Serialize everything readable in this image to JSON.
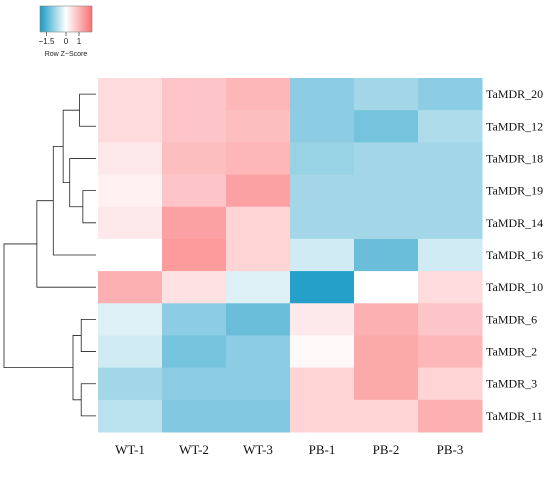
{
  "chart_data": {
    "type": "heatmap",
    "title": "",
    "columns": [
      "WT-1",
      "WT-2",
      "WT-3",
      "PB-1",
      "PB-2",
      "PB-3"
    ],
    "rows": [
      "TaMDR_20",
      "TaMDR_12",
      "TaMDR_18",
      "TaMDR_19",
      "TaMDR_14",
      "TaMDR_16",
      "TaMDR_10",
      "TaMDR_6",
      "TaMDR_2",
      "TaMDR_3",
      "TaMDR_11"
    ],
    "values": [
      [
        0.5,
        0.8,
        1.0,
        -1.0,
        -0.8,
        -1.0
      ],
      [
        0.5,
        0.8,
        0.9,
        -1.0,
        -1.2,
        -0.7
      ],
      [
        0.3,
        0.9,
        1.0,
        -0.9,
        -0.8,
        -0.8
      ],
      [
        0.2,
        0.8,
        1.3,
        -0.8,
        -0.8,
        -0.8
      ],
      [
        0.3,
        1.3,
        0.6,
        -0.8,
        -0.8,
        -0.8
      ],
      [
        0.0,
        1.4,
        0.6,
        -0.4,
        -1.3,
        -0.4
      ],
      [
        1.1,
        0.4,
        -0.3,
        -1.9,
        0.0,
        0.5
      ],
      [
        -0.3,
        -1.0,
        -1.3,
        0.3,
        1.1,
        0.8
      ],
      [
        -0.4,
        -1.2,
        -1.0,
        0.1,
        1.2,
        1.0
      ],
      [
        -0.8,
        -1.0,
        -1.0,
        0.6,
        1.2,
        0.6
      ],
      [
        -0.6,
        -1.1,
        -1.1,
        0.6,
        0.6,
        1.1
      ]
    ],
    "color_scale": {
      "min": -2,
      "max": 2,
      "low_color": "#1a9bc6",
      "mid_color": "#ffffff",
      "high_color": "#fa6f72"
    },
    "legend": {
      "label": "Row Z−Score",
      "ticks": [
        -1.5,
        0,
        1
      ],
      "tick_labels": [
        "−1.5",
        "0",
        "1"
      ],
      "placement": "top-left"
    },
    "row_dendrogram": {
      "merges": [
        [
          0,
          1,
          1.0
        ],
        [
          3,
          4,
          0.8
        ],
        [
          2,
          12,
          1.6
        ],
        [
          11,
          13,
          2.0
        ],
        [
          5,
          14,
          2.6
        ],
        [
          15,
          6,
          3.6
        ],
        [
          7,
          8,
          0.9
        ],
        [
          9,
          10,
          0.9
        ],
        [
          17,
          18,
          1.4
        ],
        [
          16,
          19,
          5.6
        ]
      ]
    }
  }
}
